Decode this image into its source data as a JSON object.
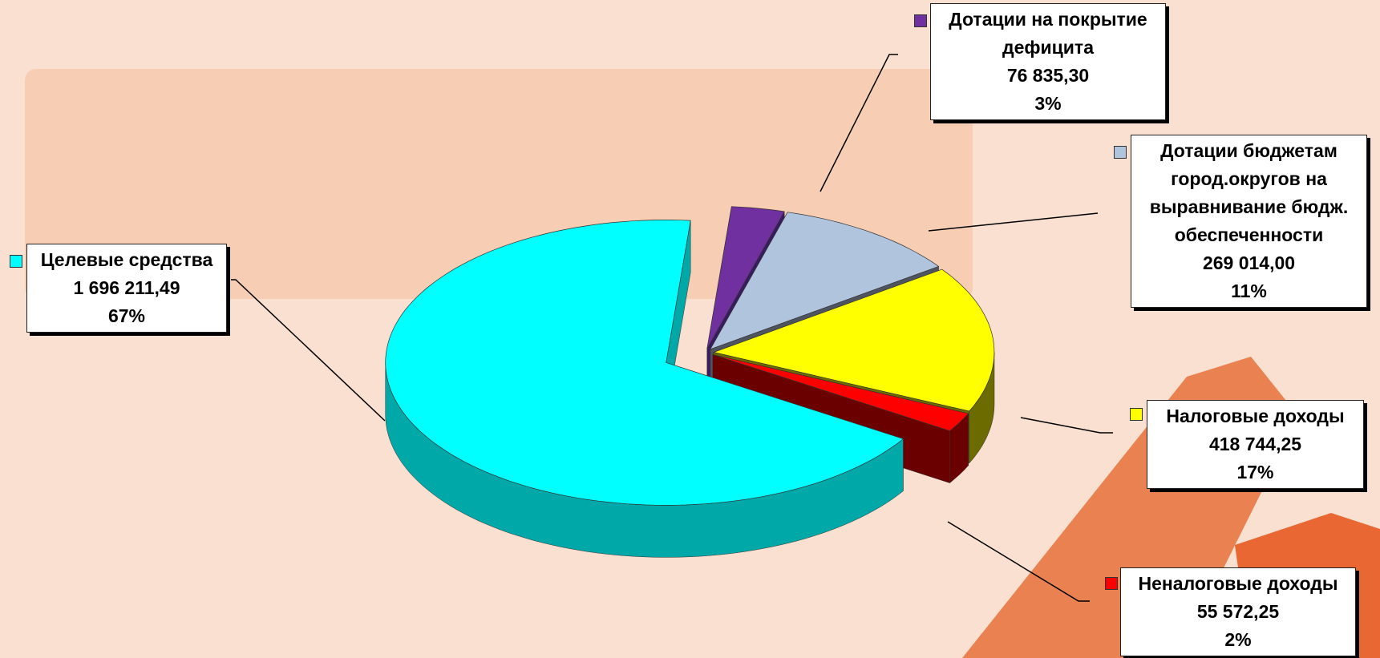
{
  "chart_data": {
    "type": "pie3d",
    "categories": [
      "Целевые средства",
      "Неналоговые доходы",
      "Налоговые доходы",
      "Дотации бюджетам город.округов на выравнивание бюдж. обеспеченности",
      "Дотации на покрытие дефицита"
    ],
    "values": [
      1696211.49,
      55572.25,
      418744.25,
      269014.0,
      76835.3
    ],
    "value_labels": [
      "1 696 211,49",
      "55 572,25",
      "418 744,25",
      "269 014,00",
      "76 835,30"
    ],
    "percents": [
      67,
      2,
      17,
      11,
      3
    ],
    "percent_labels": [
      "67%",
      "2%",
      "17%",
      "11%",
      "3%"
    ],
    "colors": [
      "#00ffff",
      "#ff0000",
      "#ffff00",
      "#b0c4de",
      "#7030a0"
    ],
    "side_colors": [
      "#00a8a8",
      "#6b0000",
      "#6b6b00",
      "#4f5461",
      "#3a1a60"
    ]
  }
}
